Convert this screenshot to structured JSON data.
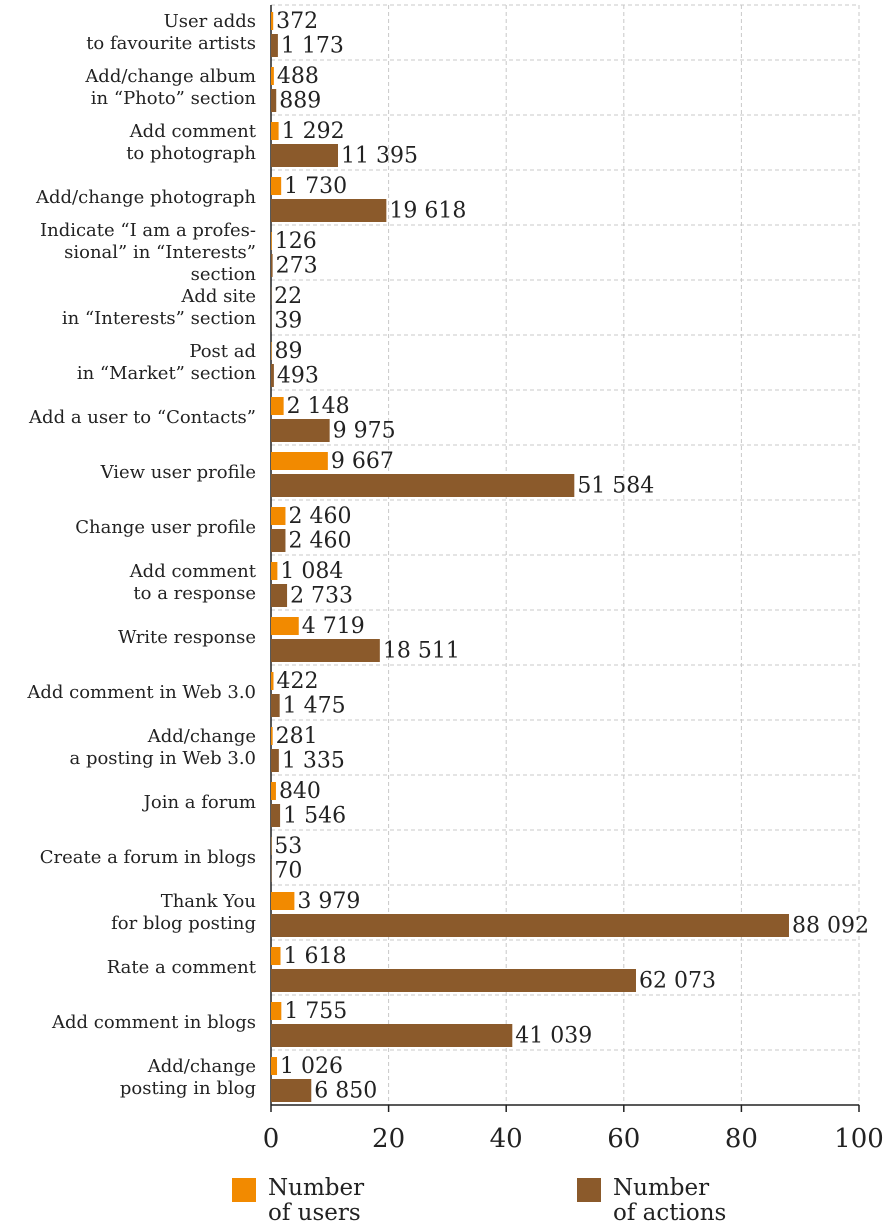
{
  "chart_data": {
    "type": "bar",
    "orientation": "horizontal",
    "categories": [
      "User adds\nto favourite artists",
      "Add/change album\nin “Photo” section",
      "Add comment\nto photograph",
      "Add/change photograph",
      "Indicate “I am a profes-\nsional” in “Interests” section",
      "Add site\nin “Interests” section",
      "Post ad\nin “Market” section",
      "Add a user to “Contacts”",
      "View user profile",
      "Change user profile",
      "Add comment\nto a response",
      "Write response",
      "Add comment in Web 3.0",
      "Add/change\na posting in Web 3.0",
      "Join a forum",
      "Create a forum in blogs",
      "Thank You\nfor blog posting",
      "Rate a comment",
      "Add comment in blogs",
      "Add/change\nposting in blog"
    ],
    "series": [
      {
        "name": "Number\nof users",
        "color": "#f28a00",
        "values": [
          0.372,
          0.488,
          1.292,
          1.73,
          0.126,
          0.022,
          0.089,
          2.148,
          9.667,
          2.46,
          1.084,
          4.719,
          0.422,
          0.281,
          0.84,
          0.053,
          3.979,
          1.618,
          1.755,
          1.026
        ],
        "value_labels": [
          "372",
          "488",
          "1 292",
          "1 730",
          "126",
          "22",
          "89",
          "2 148",
          "9 667",
          "2 460",
          "1 084",
          "4 719",
          "422",
          "281",
          "840",
          "53",
          "3 979",
          "1 618",
          "1 755",
          "1 026"
        ]
      },
      {
        "name": "Number\nof actions",
        "color": "#8b5a2b",
        "values": [
          1.173,
          0.889,
          11.395,
          19.618,
          0.273,
          0.039,
          0.493,
          9.975,
          51.584,
          2.46,
          2.733,
          18.511,
          1.475,
          1.335,
          1.546,
          0.07,
          88.092,
          62.073,
          41.039,
          6.85
        ],
        "value_labels": [
          "1 173",
          "889",
          "11 395",
          "19 618",
          "273",
          "39",
          "493",
          "9 975",
          "51 584",
          "2 460",
          "2 733",
          "18 511",
          "1 475",
          "1 335",
          "1 546",
          "70",
          "88 092",
          "62 073",
          "41 039",
          "6 850"
        ]
      }
    ],
    "xlim": [
      0,
      100
    ],
    "xticks": [
      0,
      20,
      40,
      60,
      80,
      100
    ],
    "grid": true
  }
}
